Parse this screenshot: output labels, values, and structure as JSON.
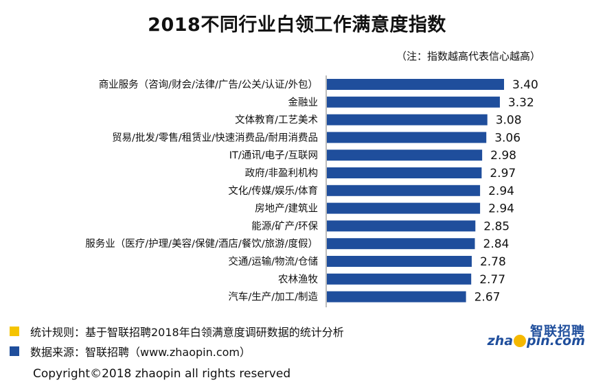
{
  "title": "2018不同行业白领工作满意度指数",
  "subtitle": "（注：指数越高代表信心越高）",
  "chart_data": {
    "type": "bar",
    "orientation": "horizontal",
    "title": "2018不同行业白领工作满意度指数",
    "categories": [
      "商业服务（咨询/财会/法律/广告/公关/认证/外包）",
      "金融业",
      "文体教育/工艺美术",
      "贸易/批发/零售/租赁业/快速消费品/耐用消费品",
      "IT/通讯/电子/互联网",
      "政府/非盈利机构",
      "文化/传媒/娱乐/体育",
      "房地产/建筑业",
      "能源/矿产/环保",
      "服务业（医疗/护理/美容/保健/酒店/餐饮/旅游/度假）",
      "交通/运输/物流/仓储",
      "农林渔牧",
      "汽车/生产/加工/制造"
    ],
    "values": [
      3.4,
      3.32,
      3.08,
      3.06,
      2.98,
      2.97,
      2.94,
      2.94,
      2.85,
      2.84,
      2.78,
      2.77,
      2.67
    ],
    "value_labels": [
      "3.40",
      "3.32",
      "3.08",
      "3.06",
      "2.98",
      "2.97",
      "2.94",
      "2.94",
      "2.85",
      "2.84",
      "2.78",
      "2.77",
      "2.67"
    ],
    "bar_color": "#1f4e9c",
    "xlim": [
      0,
      4.0
    ],
    "grid": false,
    "legend": "none"
  },
  "footer": {
    "rule_text": "统计规则：基于智联招聘2018年白领满意度调研数据的统计分析",
    "rule_color": "#f5c400",
    "source_text": "数据来源：智联招聘（www.zhaopin.com）",
    "source_color": "#1f4e9c",
    "copyright": "Copyright©2018 zhaopin all rights reserved"
  },
  "logo": {
    "cn": "智联招聘",
    "en_prefix": "zha",
    "en_suffix": "pin.com"
  }
}
